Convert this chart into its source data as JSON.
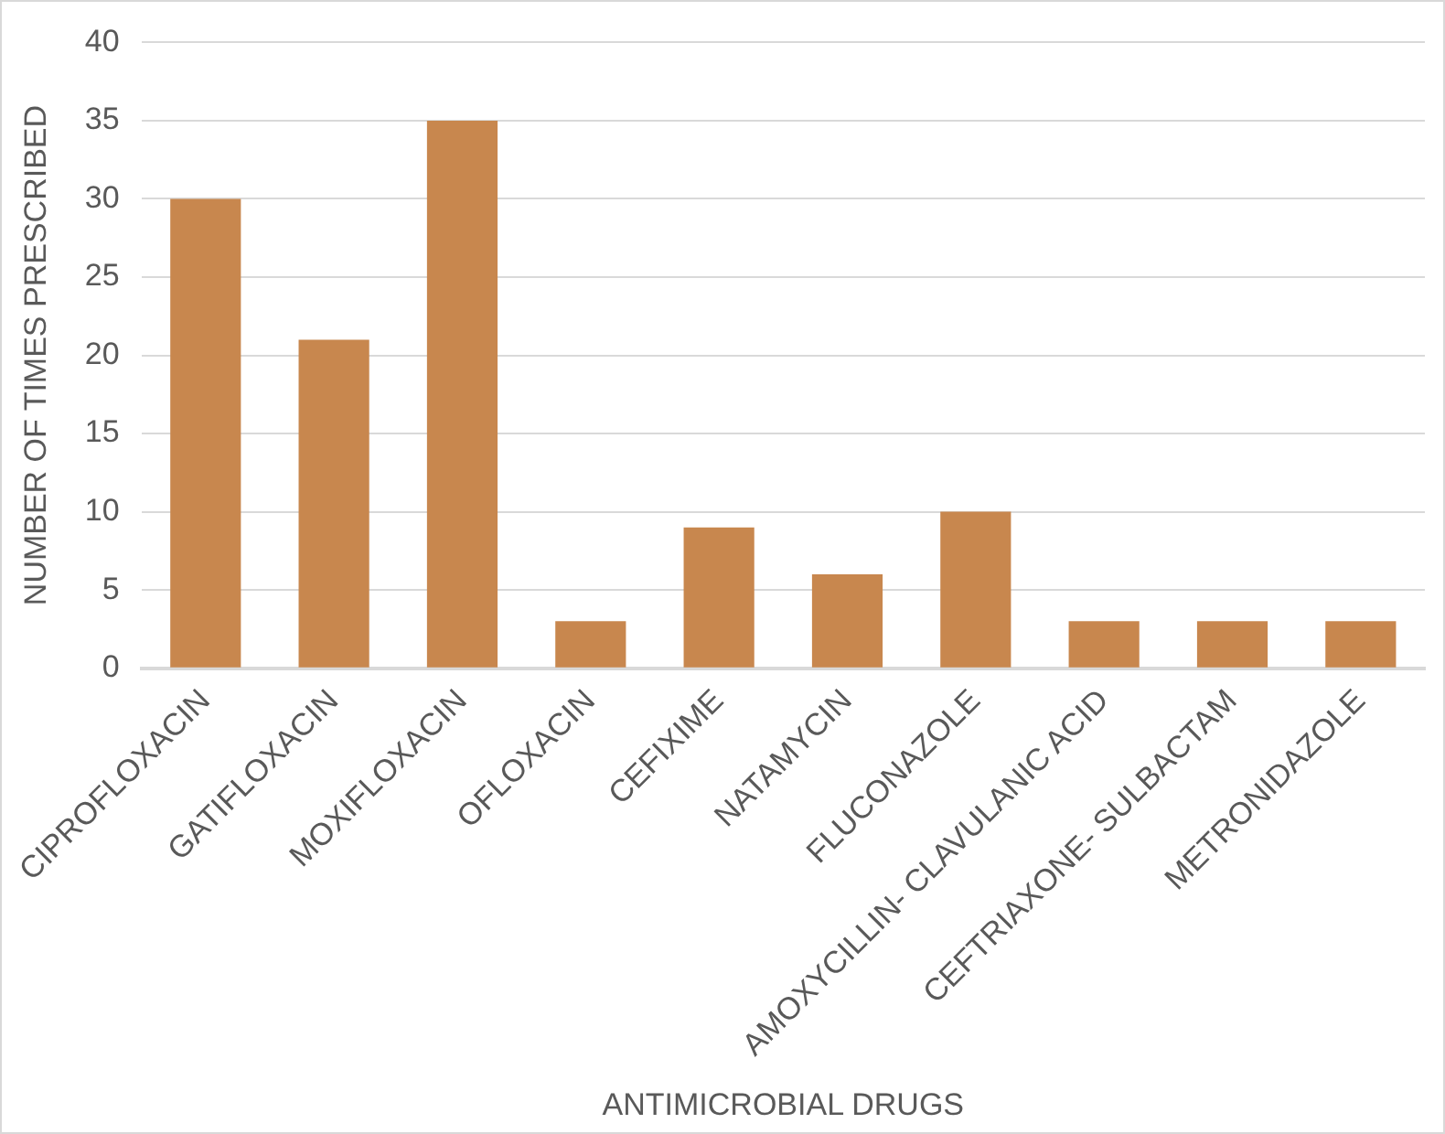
{
  "chart_data": {
    "type": "bar",
    "xlabel": "ANTIMICROBIAL DRUGS",
    "ylabel": "NUMBER OF TIMES PRESCRIBED",
    "categories": [
      "CIPROFLOXACIN",
      "GATIFLOXACIN",
      "MOXIFLOXACIN",
      "OFLOXACIN",
      "CEFIXIME",
      "NATAMYCIN",
      "FLUCONAZOLE",
      "AMOXYCILLIN- CLAVULANIC ACID",
      "CEFTRIAXONE- SULBACTAM",
      "METRONIDAZOLE"
    ],
    "values": [
      30,
      21,
      35,
      3,
      9,
      6,
      10,
      3,
      3,
      3
    ],
    "color": "#c8874e",
    "ylim": [
      0,
      40
    ],
    "yticks": [
      0,
      5,
      10,
      15,
      20,
      25,
      30,
      35,
      40
    ],
    "grid": "y",
    "legend": false
  }
}
